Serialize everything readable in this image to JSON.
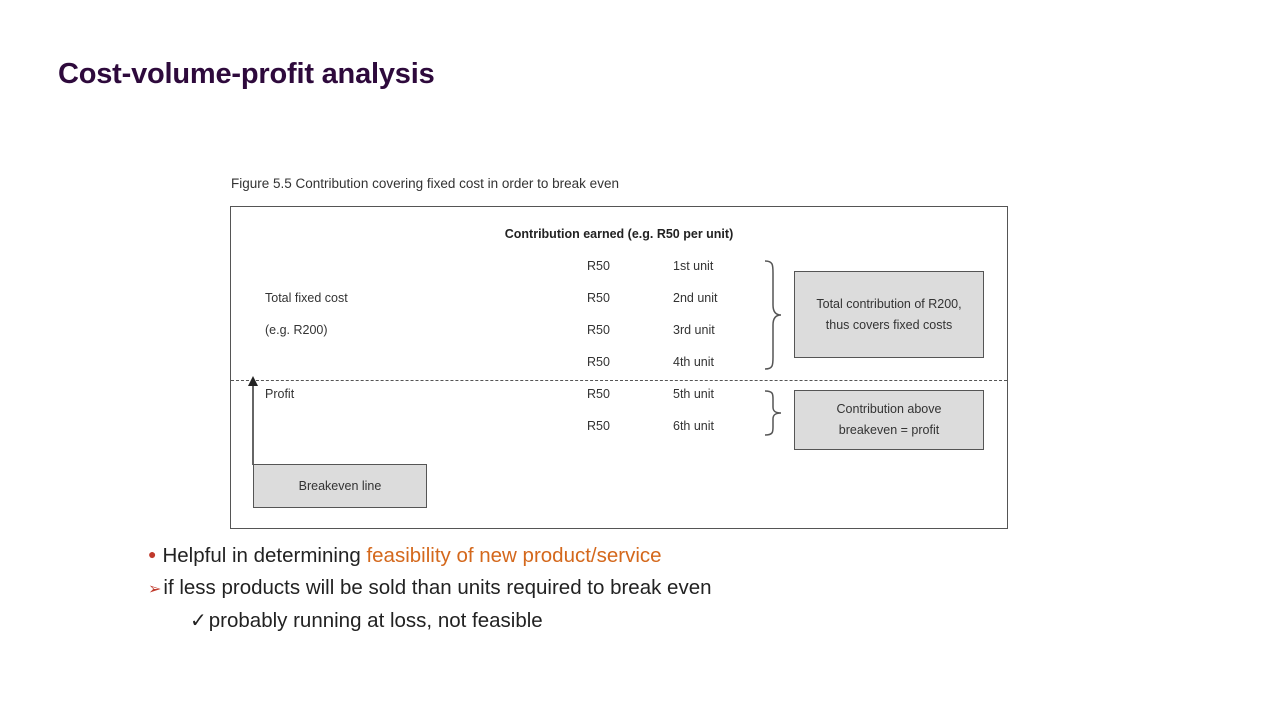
{
  "slide": {
    "title": "Cost-volume-profit analysis"
  },
  "figure": {
    "caption": "Figure 5.5 Contribution covering fixed cost in order to break even",
    "header": "Contribution earned (e.g. R50 per unit)",
    "left_labels": {
      "total_fixed_cost": "Total fixed cost",
      "example": "(e.g. R200)",
      "profit": "Profit"
    },
    "rows": [
      {
        "amount": "R50",
        "unit": "1st unit"
      },
      {
        "amount": "R50",
        "unit": "2nd unit"
      },
      {
        "amount": "R50",
        "unit": "3rd unit"
      },
      {
        "amount": "R50",
        "unit": "4th unit"
      },
      {
        "amount": "R50",
        "unit": "5th unit"
      },
      {
        "amount": "R50",
        "unit": "6th unit"
      }
    ],
    "box_contribution": "Total contribution of R200,\nthus covers fixed costs",
    "box_profit": "Contribution above\nbreakeven = profit",
    "box_breakeven": "Breakeven line"
  },
  "bullets": [
    {
      "prefix": "Helpful in determining ",
      "highlight": "feasibility of new product/service"
    },
    {
      "text": "if less products will be sold than units required to break even"
    },
    {
      "text": "probably running at loss, not feasible"
    }
  ],
  "colors": {
    "title": "#2e0a3c",
    "highlight": "#d4681c",
    "bullet_marker": "#c0392b",
    "box_fill": "#dcdcdc"
  },
  "icons": {
    "level1": "dot-bullet",
    "level2": "arrow-bullet",
    "level3": "checkmark-bullet"
  }
}
